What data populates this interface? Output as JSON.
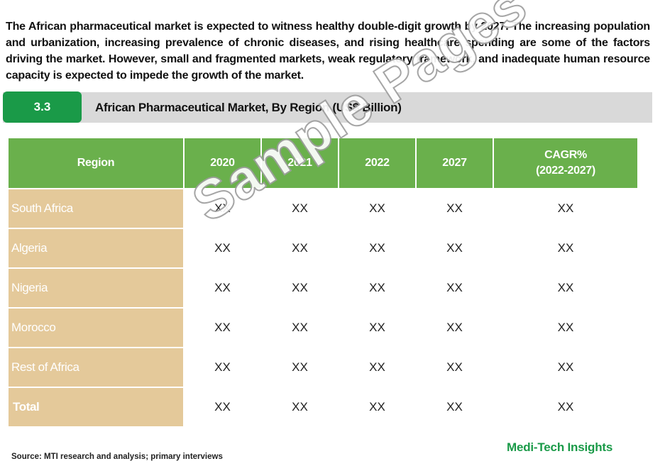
{
  "intro": {
    "text": "The African pharmaceutical market is expected to witness healthy double-digit growth by 2027. The increasing population and urbanization, increasing prevalence of chronic diseases, and rising healthcare spending are some of the factors driving the market. However, small and fragmented markets, weak regulatory framework, and inadequate human resource capacity is expected to impede the growth of the market."
  },
  "section": {
    "number": "3.3",
    "title": "African Pharmaceutical Market, By Region (US$ Billion)"
  },
  "table": {
    "headers": {
      "region": "Region",
      "y2020": "2020",
      "y2021": "2021",
      "y2022": "2022",
      "y2027": "2027",
      "cagr_line1": "CAGR%",
      "cagr_line2": "(2022-2027)"
    },
    "rows": [
      {
        "region": "South Africa",
        "v2020": "XX",
        "v2021": "XX",
        "v2022": "XX",
        "v2027": "XX",
        "cagr": "XX"
      },
      {
        "region": "Algeria",
        "v2020": "XX",
        "v2021": "XX",
        "v2022": "XX",
        "v2027": "XX",
        "cagr": "XX"
      },
      {
        "region": "Nigeria",
        "v2020": "XX",
        "v2021": "XX",
        "v2022": "XX",
        "v2027": "XX",
        "cagr": "XX"
      },
      {
        "region": "Morocco",
        "v2020": "XX",
        "v2021": "XX",
        "v2022": "XX",
        "v2027": "XX",
        "cagr": "XX"
      },
      {
        "region": "Rest of Africa",
        "v2020": "XX",
        "v2021": "XX",
        "v2022": "XX",
        "v2027": "XX",
        "cagr": "XX"
      },
      {
        "region": "Total",
        "v2020": "XX",
        "v2021": "XX",
        "v2022": "XX",
        "v2027": "XX",
        "cagr": "XX"
      }
    ]
  },
  "watermark": "Sample Pages",
  "footer": {
    "source": "Source: MTI research and analysis; primary interviews",
    "brand": "Medi-Tech Insights"
  },
  "colors": {
    "accent_green": "#1a9a48",
    "header_green": "#6ab04c",
    "region_tan": "#e4c99a",
    "bar_gray": "#d9d9d9"
  }
}
